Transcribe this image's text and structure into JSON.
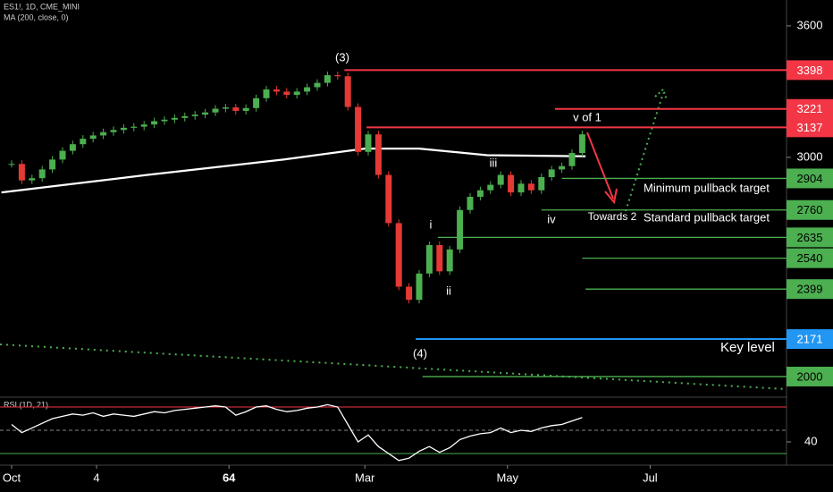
{
  "chart_data": {
    "type": "candlestick",
    "title": "ES1!, 1D, CME_MINI",
    "indicator": "MA (200, close, 0)",
    "color_up": "#4caf50",
    "color_down": "#e53935",
    "x": [
      0,
      3,
      6,
      9,
      12,
      15,
      18,
      21,
      24,
      27,
      30,
      33,
      36,
      39,
      42,
      45,
      48,
      51,
      54,
      57,
      60,
      63,
      66,
      69,
      72,
      75,
      78,
      81,
      84,
      87,
      90,
      93,
      96,
      99,
      102,
      105,
      108,
      111,
      114,
      117,
      120,
      123,
      126,
      129,
      132,
      135,
      138,
      141,
      144,
      147,
      150,
      153,
      156,
      159,
      162,
      165,
      168
    ],
    "values": [
      2970,
      2895,
      2905,
      2945,
      2990,
      3030,
      3060,
      3085,
      3100,
      3115,
      3125,
      3135,
      3140,
      3150,
      3165,
      3172,
      3180,
      3188,
      3195,
      3205,
      3222,
      3228,
      3212,
      3225,
      3270,
      3310,
      3300,
      3285,
      3300,
      3320,
      3340,
      3375,
      3370,
      3230,
      3025,
      3105,
      2920,
      2700,
      2410,
      2350,
      2470,
      2600,
      2480,
      2580,
      2760,
      2820,
      2850,
      2875,
      2920,
      2840,
      2880,
      2850,
      2910,
      2945,
      2960,
      3020,
      3105
    ],
    "ma": {
      "color": "#ffffff",
      "x": [
        -3,
        40,
        80,
        104,
        120,
        140,
        169
      ],
      "values": [
        2840,
        2920,
        2990,
        3040,
        3040,
        3010,
        3005
      ]
    },
    "xlim": [
      -3.42,
      228.16
    ],
    "xticks": [
      {
        "value": 0,
        "label": "Oct"
      },
      {
        "value": 25,
        "label": "4"
      },
      64,
      {
        "value": 104,
        "label": "Mar"
      },
      {
        "value": 146,
        "label": "May"
      },
      {
        "value": 188,
        "label": "Jul"
      }
    ],
    "ylim": [
      1910,
      3718
    ],
    "yticks": [
      3000,
      3600
    ],
    "levels": [
      {
        "value": 3398,
        "color": "#f23645",
        "x0": 98
      },
      {
        "value": 3221,
        "color": "#f23645",
        "x0": 160
      },
      {
        "value": 3137,
        "color": "#f23645",
        "x0": 104.5
      },
      {
        "value": 2904,
        "color": "#4caf50",
        "x0": 162,
        "label": "Minimum pullback target"
      },
      {
        "value": 2760,
        "color": "#4caf50",
        "x0": 156,
        "label": "Standard pullback target"
      },
      {
        "value": 2635,
        "color": "#4caf50",
        "x0": 125.5
      },
      {
        "value": 2540,
        "color": "#4caf50",
        "x0": 168
      },
      {
        "value": 2399,
        "color": "#4caf50",
        "x0": 169
      },
      {
        "value": 2171,
        "color": "#2196f3",
        "x0": 119,
        "label": "Key level"
      },
      {
        "value": 2000,
        "color": "#4caf50",
        "x0": 121
      }
    ],
    "annotations": [
      "(3)",
      "v of 1",
      "iii",
      "iv",
      "i",
      "ii",
      "(4)",
      "Towards 2"
    ],
    "rsi": {
      "title": "RSI (1D, 21)",
      "color": "#ffffff",
      "values": [
        55,
        48,
        52,
        56,
        60,
        62,
        64,
        63,
        65,
        62,
        64,
        63,
        62,
        64,
        66,
        65,
        67,
        68,
        69,
        70,
        71,
        70,
        63,
        66,
        70,
        71,
        68,
        66,
        67,
        69,
        70,
        72,
        70,
        55,
        40,
        46,
        36,
        30,
        24,
        26,
        32,
        36,
        31,
        35,
        42,
        45,
        47,
        48,
        52,
        48,
        50,
        49,
        52,
        54,
        55,
        58,
        61
      ],
      "ylim": [
        20,
        77.7
      ],
      "yticks": [
        40
      ],
      "levels": [
        {
          "value": 70,
          "color": "#f23645"
        },
        {
          "value": 50,
          "color": "#888888"
        },
        {
          "value": 30,
          "color": "#4caf50"
        }
      ]
    }
  }
}
